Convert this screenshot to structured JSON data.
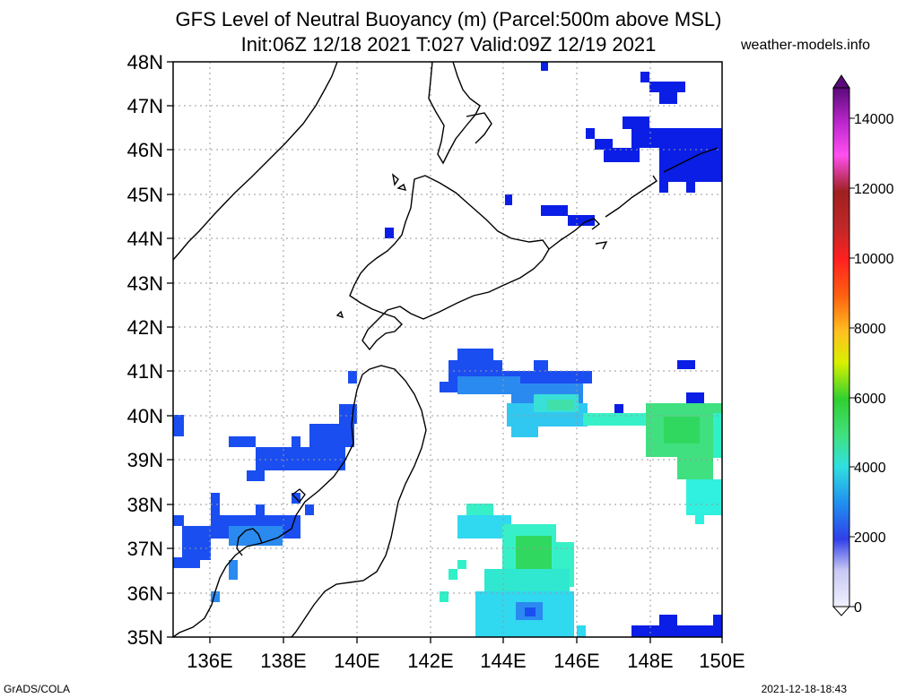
{
  "title": {
    "line1": "GFS Level of Neutral Buoyancy (m) (Parcel:500m above MSL)",
    "line2": "Init:06Z 12/18 2021 T:027 Valid:09Z 12/19 2021"
  },
  "site": "weather-models.info",
  "footer": {
    "left": "GrADS/COLA",
    "right": "2021-12-18-18:43"
  },
  "map": {
    "lat_labels": [
      "48N",
      "47N",
      "46N",
      "45N",
      "44N",
      "43N",
      "42N",
      "41N",
      "40N",
      "39N",
      "38N",
      "37N",
      "36N",
      "35N"
    ],
    "lon_labels": [
      "136E",
      "138E",
      "140E",
      "142E",
      "144E",
      "146E",
      "148E",
      "150E"
    ],
    "lat_range": [
      35,
      48
    ],
    "lon_range": [
      135,
      150
    ]
  },
  "colorbar": {
    "labels": [
      "14000",
      "12000",
      "10000",
      "8000",
      "6000",
      "4000",
      "2000",
      "0"
    ],
    "colors": [
      "#5a0a7a",
      "#8a1aa0",
      "#b020c8",
      "#d830e0",
      "#f040f0",
      "#ff70f0",
      "#b02020",
      "#d03030",
      "#e83030",
      "#ff2020",
      "#ff6010",
      "#ff9020",
      "#ffb020",
      "#ffd030",
      "#f0f000",
      "#c8f000",
      "#70e000",
      "#20d000",
      "#40e080",
      "#30f0c0",
      "#20e0f0",
      "#20b0f0",
      "#1a70f0",
      "#1030f0",
      "#0010e0",
      "#6060e0",
      "#a0a0f0",
      "#d0d0f8"
    ]
  },
  "colors": {
    "deep_blue": "#0a1ee6",
    "blue": "#1a4ef0",
    "mid_blue": "#2a8af0",
    "cyan": "#30d8f0",
    "aqua": "#38f0c8",
    "green": "#40e080",
    "bright_green": "#30d040"
  }
}
